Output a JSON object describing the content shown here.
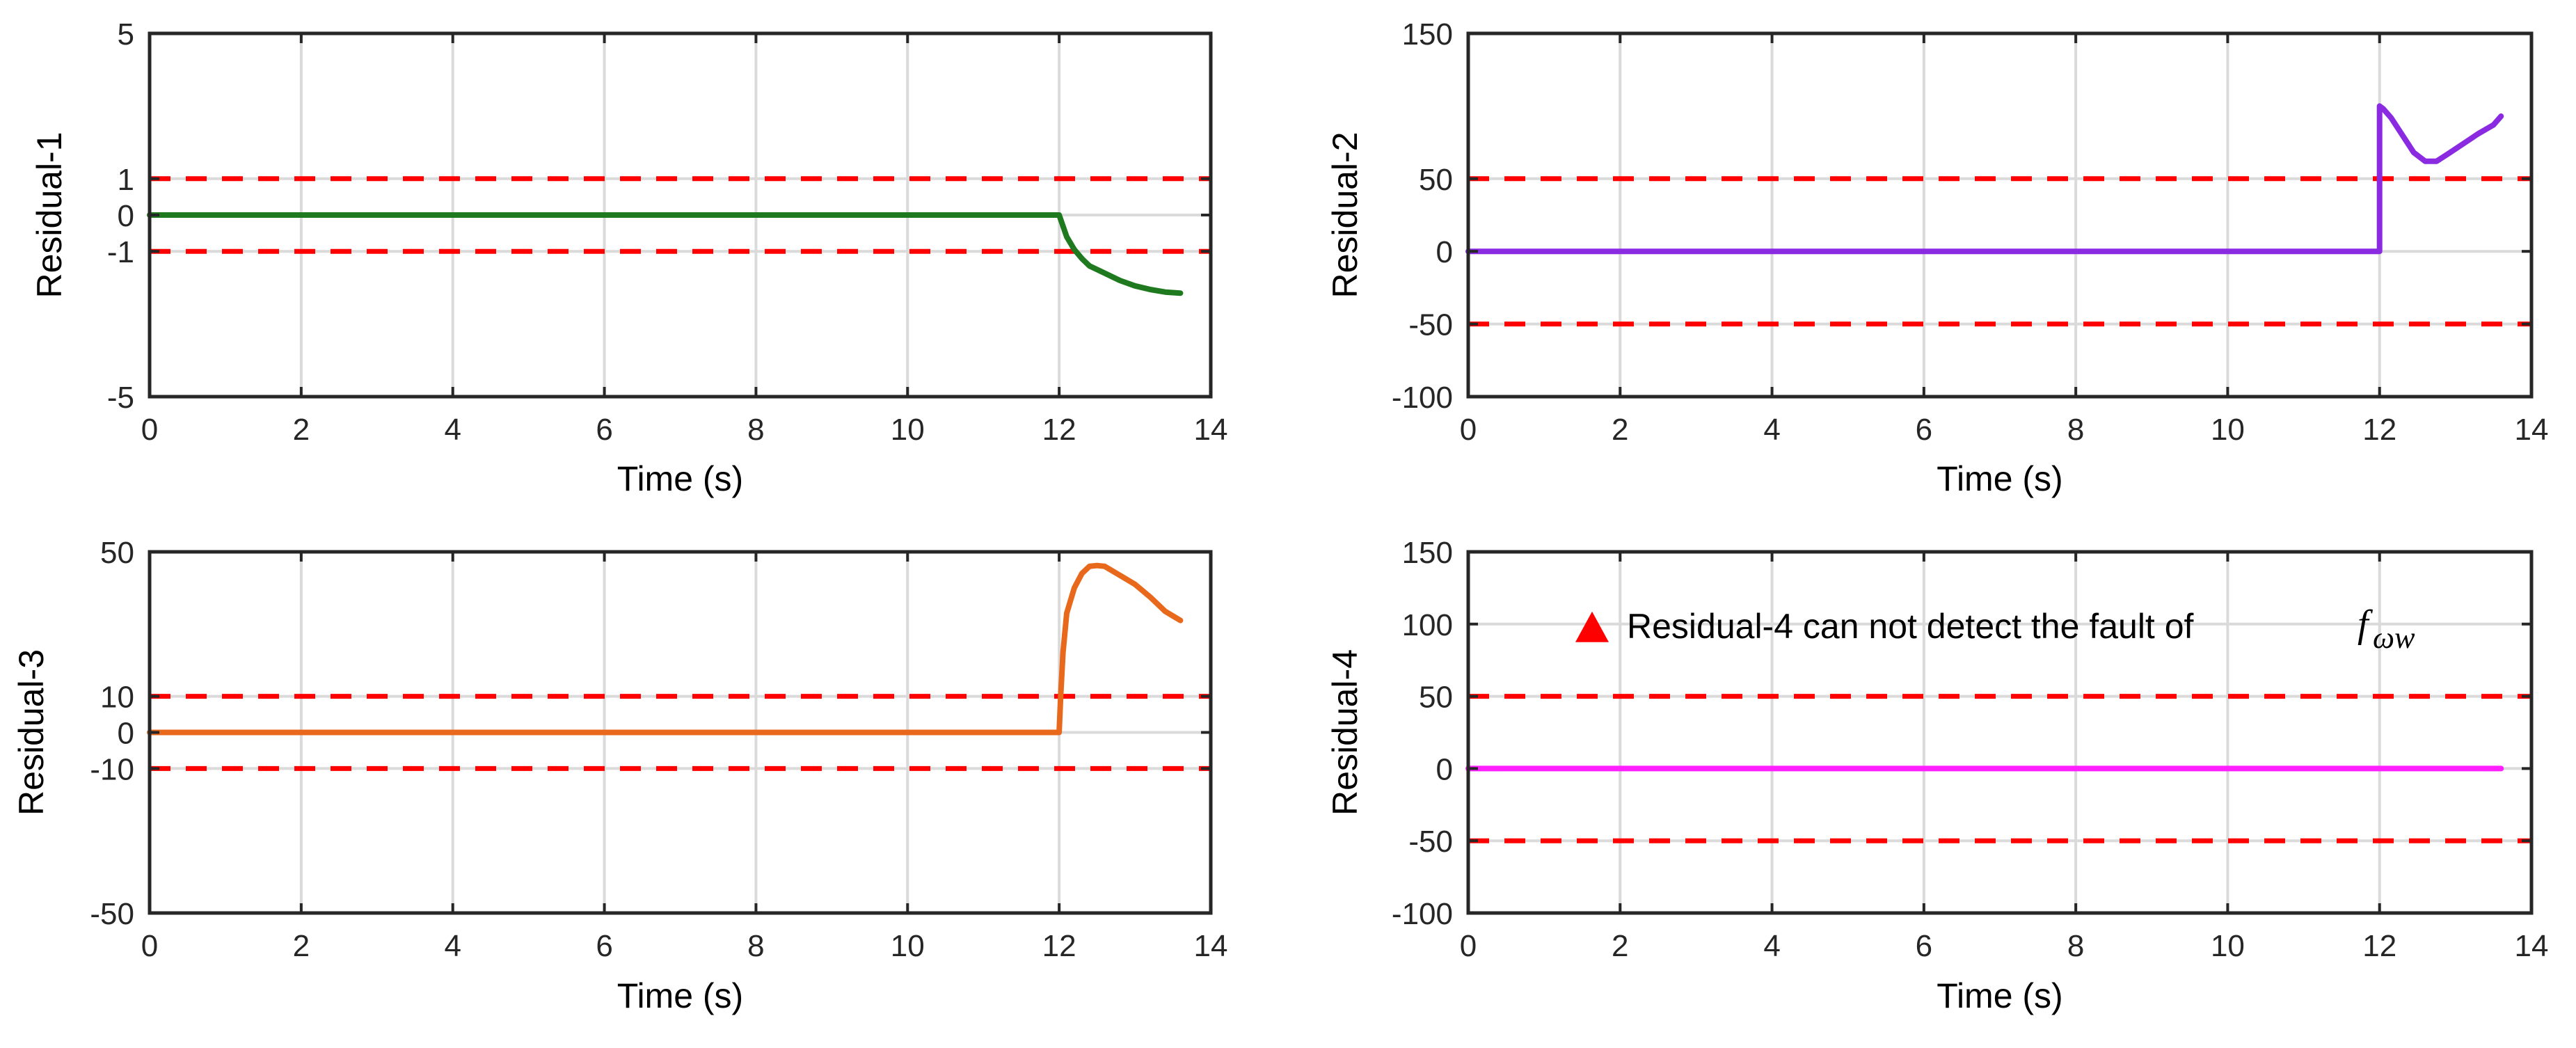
{
  "colors": {
    "residual1": "#1f7a1f",
    "residual2": "#8a2be2",
    "residual3": "#e8691c",
    "residual4": "#ff1fff",
    "threshold": "#ff0000",
    "grid": "#dadada",
    "axis": "#262626"
  },
  "chart_data": [
    {
      "type": "line",
      "ylabel": "Residual-1",
      "xlabel": "Time (s)",
      "xlim": [
        0,
        14
      ],
      "ylim": [
        -5,
        5
      ],
      "xticks": [
        "0",
        "2",
        "4",
        "6",
        "8",
        "10",
        "12",
        "14"
      ],
      "yticks": [
        {
          "value": -5,
          "label": "-5"
        },
        {
          "value": -1,
          "label": "-1"
        },
        {
          "value": 0,
          "label": "0"
        },
        {
          "value": 1,
          "label": "1"
        },
        {
          "value": 5,
          "label": "5"
        }
      ],
      "thresholds": [
        1,
        -1
      ],
      "series": [
        {
          "name": "Residual-1",
          "color": "#1f7a1f",
          "x": [
            0,
            12,
            12.05,
            12.1,
            12.2,
            12.3,
            12.4,
            12.6,
            12.8,
            13.0,
            13.2,
            13.4,
            13.6
          ],
          "y": [
            0,
            0,
            -0.3,
            -0.6,
            -0.95,
            -1.2,
            -1.4,
            -1.6,
            -1.8,
            -1.95,
            -2.05,
            -2.12,
            -2.15
          ]
        }
      ]
    },
    {
      "type": "line",
      "ylabel": "Residual-2",
      "xlabel": "Time (s)",
      "xlim": [
        0,
        14
      ],
      "ylim": [
        -100,
        150
      ],
      "xticks": [
        "0",
        "2",
        "4",
        "6",
        "8",
        "10",
        "12",
        "14"
      ],
      "yticks": [
        {
          "value": -100,
          "label": "-100"
        },
        {
          "value": -50,
          "label": "-50"
        },
        {
          "value": 0,
          "label": "0"
        },
        {
          "value": 50,
          "label": "50"
        },
        {
          "value": 150,
          "label": "150"
        }
      ],
      "thresholds": [
        50,
        -50
      ],
      "series": [
        {
          "name": "Residual-2",
          "color": "#8a2be2",
          "x": [
            0,
            12,
            12.0,
            12.05,
            12.15,
            12.3,
            12.45,
            12.6,
            12.75,
            12.9,
            13.1,
            13.3,
            13.5,
            13.6
          ],
          "y": [
            0,
            0,
            100,
            98,
            92,
            80,
            68,
            62,
            62,
            67,
            74,
            81,
            87,
            93
          ]
        }
      ]
    },
    {
      "type": "line",
      "ylabel": "Residual-3",
      "xlabel": "Time (s)",
      "xlim": [
        0,
        14
      ],
      "ylim": [
        -50,
        50
      ],
      "xticks": [
        "0",
        "2",
        "4",
        "6",
        "8",
        "10",
        "12",
        "14"
      ],
      "yticks": [
        {
          "value": -50,
          "label": "-50"
        },
        {
          "value": -10,
          "label": "-10"
        },
        {
          "value": 0,
          "label": "0"
        },
        {
          "value": 10,
          "label": "10"
        },
        {
          "value": 50,
          "label": "50"
        }
      ],
      "thresholds": [
        10,
        -10
      ],
      "series": [
        {
          "name": "Residual-3",
          "color": "#e8691c",
          "x": [
            0,
            12,
            12.02,
            12.05,
            12.1,
            12.2,
            12.3,
            12.4,
            12.5,
            12.6,
            12.8,
            13.0,
            13.2,
            13.4,
            13.6
          ],
          "y": [
            0,
            0,
            10,
            22,
            33,
            40,
            44,
            46,
            46.2,
            46,
            43.5,
            41,
            37.5,
            33.5,
            31
          ]
        }
      ]
    },
    {
      "type": "line",
      "ylabel": "Residual-4",
      "xlabel": "Time (s)",
      "xlim": [
        0,
        14
      ],
      "ylim": [
        -100,
        150
      ],
      "xticks": [
        "0",
        "2",
        "4",
        "6",
        "8",
        "10",
        "12",
        "14"
      ],
      "yticks": [
        {
          "value": -100,
          "label": "-100"
        },
        {
          "value": -50,
          "label": "-50"
        },
        {
          "value": 0,
          "label": "0"
        },
        {
          "value": 50,
          "label": "50"
        },
        {
          "value": 100,
          "label": "100"
        },
        {
          "value": 150,
          "label": "150"
        }
      ],
      "thresholds": [
        50,
        -50
      ],
      "annotation": {
        "text": "Residual-4 can not detect the fault of",
        "math_symbol": "f",
        "math_subscript": "ωw",
        "marker": "triangle",
        "marker_color": "#ff0000"
      },
      "series": [
        {
          "name": "Residual-4",
          "color": "#ff1fff",
          "x": [
            0,
            13.6
          ],
          "y": [
            0,
            0
          ]
        }
      ]
    }
  ]
}
